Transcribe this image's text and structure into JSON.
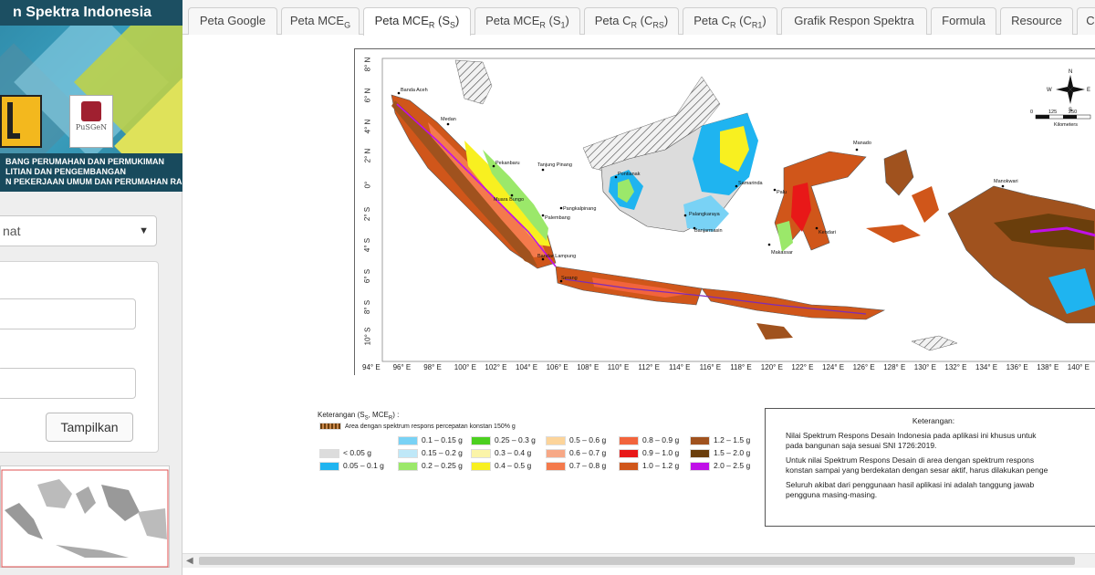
{
  "sidebar": {
    "app_title": "n Spektra Indonesia",
    "logo_pusgen_text": "PuSGeN",
    "org_lines": [
      "BANG PERUMAHAN DAN PERMUKIMAN",
      "LITIAN DAN PENGEMBANGAN",
      "N PEKERJAAN UMUM DAN PERUMAHAN RAKYAT"
    ],
    "select_value": "nat",
    "submit_label": "Tampilkan"
  },
  "tabs": [
    {
      "label": "Peta Google",
      "active": false
    },
    {
      "label": "Peta MCE",
      "sub": "G",
      "active": false
    },
    {
      "label": "Peta MCE",
      "sub": "R",
      "suffix": " (S",
      "sub2": "S",
      "end": ")",
      "active": true
    },
    {
      "label": "Peta MCE",
      "sub": "R",
      "suffix": " (S",
      "sub2": "1",
      "end": ")",
      "active": false
    },
    {
      "label": "Peta C",
      "sub": "R",
      "suffix": " (C",
      "sub2": "RS",
      "end": ")",
      "active": false
    },
    {
      "label": "Peta C",
      "sub": "R",
      "suffix": " (C",
      "sub2": "R1",
      "end": ")",
      "active": false
    },
    {
      "label": "Grafik Respon Spektra",
      "active": false
    },
    {
      "label": "Formula",
      "active": false
    },
    {
      "label": "Resource",
      "active": false
    },
    {
      "label": "C",
      "active": false
    }
  ],
  "map": {
    "lat_labels": [
      "8° N",
      "6° N",
      "4° N",
      "2° N",
      "0°",
      "2° S",
      "4° S",
      "6° S",
      "8° S",
      "10° S"
    ],
    "lon_labels": [
      "94° E",
      "96° E",
      "98° E",
      "100° E",
      "102° E",
      "104° E",
      "106° E",
      "108° E",
      "110° E",
      "112° E",
      "114° E",
      "116° E",
      "118° E",
      "120° E",
      "122° E",
      "124° E",
      "126° E",
      "128° E",
      "130° E",
      "132° E",
      "134° E",
      "136° E",
      "138° E",
      "140° E"
    ],
    "cities": [
      "Banda Aceh",
      "Medan",
      "Pekanbaru",
      "Tanjung Pinang",
      "Muara Bungo",
      "Palembang",
      "Pangkalpinang",
      "Bandar Lampung",
      "Serang",
      "Pontianak",
      "Palangkaraya",
      "Banjarmasin",
      "Samarinda",
      "Palu",
      "Makassar",
      "Kendari",
      "Manado",
      "Manokwari"
    ],
    "scale_values": [
      "0",
      "125",
      "250"
    ],
    "scale_unit": "Kilometers",
    "compass": {
      "n": "N",
      "s": "S",
      "e": "E",
      "w": "W"
    }
  },
  "legend": {
    "title": "Keterangan (S",
    "title_sub": "S",
    "title_tail": ", MCE",
    "title_sub2": "R",
    "title_end": ") :",
    "hatch_label": "Area dengan spektrum respons percepatan konstan 150% g",
    "items": [
      {
        "label": "< 0.05 g",
        "color": "#dcdcdc"
      },
      {
        "label": "0.05 – 0.1 g",
        "color": "#1fb4f0"
      },
      {
        "label": "0.1 – 0.15 g",
        "color": "#79d2f5"
      },
      {
        "label": "0.15 – 0.2 g",
        "color": "#bfe8f8"
      },
      {
        "label": "0.2 – 0.25 g",
        "color": "#9be86a"
      },
      {
        "label": "0.25 – 0.3 g",
        "color": "#4cd020"
      },
      {
        "label": "0.3 – 0.4 g",
        "color": "#fbf4a8"
      },
      {
        "label": "0.4 – 0.5 g",
        "color": "#f8f020"
      },
      {
        "label": "0.5 – 0.6 g",
        "color": "#fcd49a"
      },
      {
        "label": "0.6 – 0.7 g",
        "color": "#f7a886"
      },
      {
        "label": "0.7 – 0.8 g",
        "color": "#f47a4c"
      },
      {
        "label": "0.8 – 0.9 g",
        "color": "#f2643c"
      },
      {
        "label": "0.9 – 1.0 g",
        "color": "#e81818"
      },
      {
        "label": "1.0 – 1.2 g",
        "color": "#d0561a"
      },
      {
        "label": "1.2 – 1.5 g",
        "color": "#a0521e"
      },
      {
        "label": "1.5 – 2.0 g",
        "color": "#6a3e0c"
      },
      {
        "label": "2.0 – 2.5 g",
        "color": "#c010e8"
      }
    ]
  },
  "notes": {
    "title": "Keterangan:",
    "bullets": [
      [
        "Nilai Spektrum Respons Desain Indonesia pada aplikasi ini khusus untuk",
        "pada bangunan saja sesuai SNI 1726:2019."
      ],
      [
        "Untuk nilai Spektrum Respons Desain di area dengan spektrum respons",
        "konstan sampai yang berdekatan dengan sesar aktif, harus dilakukan penge"
      ],
      [
        "Seluruh akibat dari penggunaan hasil aplikasi ini adalah tanggung jawab",
        "pengguna masing-masing."
      ]
    ]
  }
}
